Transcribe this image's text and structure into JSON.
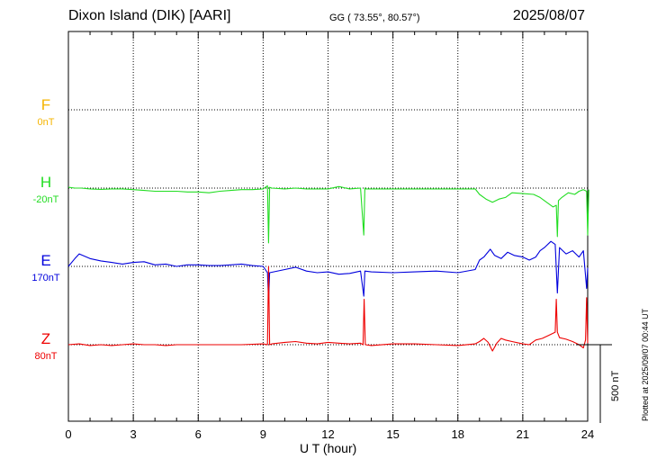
{
  "header": {
    "station": "Dixon Island (DIK)  [AARI]",
    "coords": "GG ( 73.55°,  80.57°)",
    "date": "2025/08/07"
  },
  "footer": {
    "plotted": "Plotted at 2025/09/07 00:44 UT",
    "scale_label": "500 nT"
  },
  "chart_data": {
    "type": "line",
    "title": "Dixon Island (DIK)  [AARI]",
    "xlabel": "U T (hour)",
    "ylabel": "",
    "xlim": [
      0,
      24
    ],
    "xticks": [
      "0",
      "3",
      "6",
      "9",
      "12",
      "15",
      "18",
      "21",
      "24"
    ],
    "scale_bar_nT": 500,
    "channels_spacing_nT": 500,
    "series": [
      {
        "name": "F",
        "offset": "0nT",
        "color": "#f5b400",
        "x": [],
        "values": []
      },
      {
        "name": "H",
        "offset": "-20nT",
        "color": "#22dd22",
        "x": [
          0,
          0.3,
          0.6,
          1,
          1.5,
          2,
          2.5,
          3,
          3.5,
          4,
          4.5,
          5,
          5.5,
          6,
          6.5,
          7,
          7.5,
          8,
          8.5,
          9,
          9.2,
          9.25,
          9.3,
          9.4,
          10,
          10.5,
          11,
          11.5,
          12,
          12.5,
          13,
          13.5,
          13.65,
          13.7,
          13.75,
          14,
          15,
          16,
          17,
          18,
          18.8,
          19,
          19.3,
          19.6,
          19.9,
          20.2,
          20.5,
          21,
          21.5,
          21.8,
          22.2,
          22.4,
          22.55,
          22.6,
          22.65,
          22.8,
          23.1,
          23.4,
          23.6,
          23.8,
          23.95,
          24.0,
          24.05
        ],
        "values": [
          5,
          0,
          0,
          -5,
          -8,
          -5,
          -5,
          -10,
          -15,
          -20,
          -20,
          -20,
          -25,
          -25,
          -30,
          -20,
          -15,
          -10,
          -10,
          -5,
          15,
          -350,
          5,
          0,
          -5,
          0,
          -5,
          -5,
          -5,
          10,
          -5,
          0,
          -300,
          0,
          -5,
          -5,
          -5,
          -5,
          -5,
          -5,
          -5,
          -40,
          -70,
          -90,
          -70,
          -60,
          -30,
          -35,
          -40,
          -60,
          -100,
          -120,
          -110,
          -310,
          -80,
          -60,
          -30,
          -40,
          -20,
          -10,
          -20,
          -300,
          -10
        ]
      },
      {
        "name": "E",
        "offset": "170nT",
        "color": "#0000dd",
        "x": [
          0,
          0.3,
          0.5,
          1,
          1.5,
          2,
          2.5,
          3,
          3.5,
          4,
          4.5,
          5,
          5.5,
          6,
          6.5,
          7,
          7.5,
          8,
          8.5,
          9,
          9.2,
          9.25,
          9.3,
          10,
          10.5,
          11,
          11.5,
          12,
          12.5,
          13,
          13.5,
          13.65,
          13.7,
          14,
          15,
          16,
          17,
          18,
          18.8,
          19.0,
          19.2,
          19.5,
          19.7,
          20.0,
          20.3,
          20.6,
          21,
          21.3,
          21.6,
          21.8,
          22.0,
          22.3,
          22.5,
          22.6,
          22.7,
          23,
          23.3,
          23.6,
          23.8,
          23.95,
          24.0
        ],
        "values": [
          0,
          50,
          80,
          50,
          35,
          25,
          15,
          25,
          30,
          10,
          15,
          0,
          10,
          10,
          5,
          5,
          10,
          15,
          5,
          0,
          -40,
          -220,
          -40,
          -20,
          -5,
          -30,
          -40,
          -35,
          -50,
          -45,
          -30,
          -190,
          -30,
          -35,
          -40,
          -35,
          -30,
          -40,
          -20,
          40,
          60,
          110,
          70,
          50,
          90,
          70,
          60,
          40,
          60,
          100,
          120,
          160,
          140,
          -170,
          120,
          80,
          100,
          60,
          100,
          -140,
          -10
        ]
      },
      {
        "name": "Z",
        "offset": "80nT",
        "color": "#ee0000",
        "x": [
          0,
          0.5,
          1,
          1.5,
          2,
          2.5,
          3,
          3.5,
          4,
          4.5,
          5,
          6,
          7,
          8,
          9,
          9.2,
          9.25,
          9.3,
          9.4,
          10,
          10.5,
          11,
          11.5,
          12,
          12.5,
          13,
          13.5,
          13.62,
          13.67,
          13.72,
          14,
          15,
          16,
          17,
          18,
          18.8,
          19,
          19.2,
          19.4,
          19.6,
          19.8,
          20,
          20.2,
          20.5,
          21,
          21.3,
          21.6,
          21.9,
          22.2,
          22.5,
          22.55,
          22.6,
          22.7,
          23,
          23.3,
          23.6,
          23.8,
          23.9,
          23.95,
          24.0
        ],
        "values": [
          0,
          5,
          -5,
          0,
          -5,
          0,
          5,
          0,
          0,
          -5,
          0,
          0,
          0,
          0,
          5,
          0,
          500,
          0,
          5,
          15,
          20,
          10,
          5,
          15,
          10,
          5,
          10,
          0,
          290,
          0,
          -5,
          5,
          5,
          0,
          -5,
          5,
          20,
          40,
          15,
          -40,
          10,
          40,
          30,
          20,
          5,
          0,
          30,
          40,
          60,
          80,
          290,
          80,
          45,
          35,
          20,
          0,
          -20,
          30,
          300,
          10
        ]
      }
    ]
  }
}
